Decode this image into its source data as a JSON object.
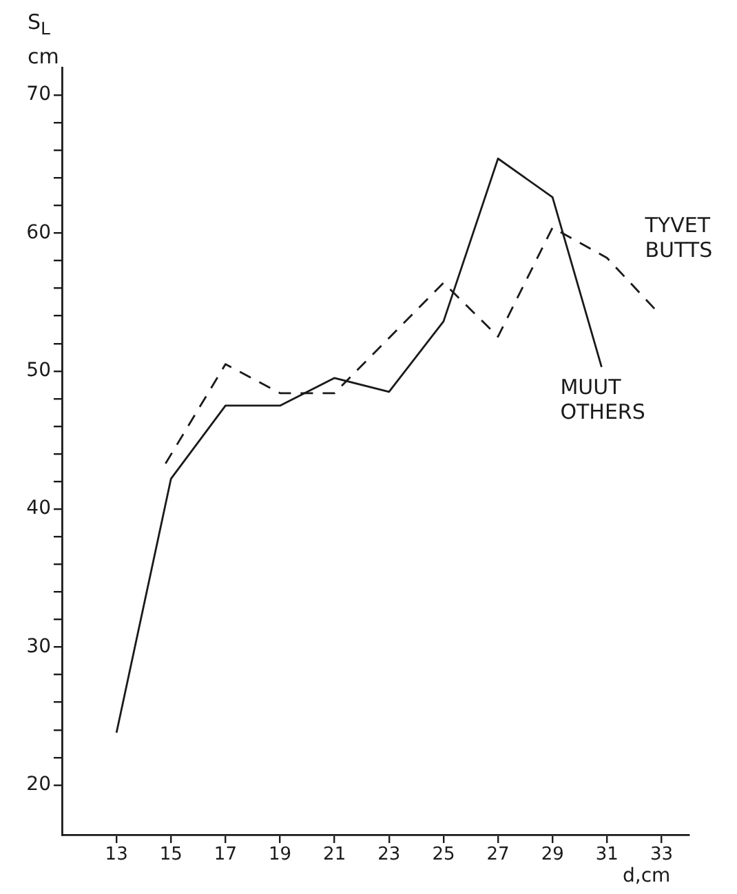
{
  "chart_data": {
    "type": "line",
    "xlabel": "d,cm",
    "ylabel": "S$_{L}$ cm",
    "xlim": [
      11,
      34
    ],
    "xticks": [
      13,
      15,
      17,
      19,
      21,
      23,
      25,
      27,
      29,
      31,
      33
    ],
    "ylim": [
      16.4,
      72
    ],
    "yticks": [
      20,
      {
        "value": 22,
        "label": null
      },
      {
        "value": 24,
        "label": null
      },
      {
        "value": 26,
        "label": null
      },
      {
        "value": 28,
        "label": null
      },
      30,
      {
        "value": 32,
        "label": null
      },
      {
        "value": 34,
        "label": null
      },
      {
        "value": 36,
        "label": null
      },
      {
        "value": 38,
        "label": null
      },
      40,
      {
        "value": 42,
        "label": null
      },
      {
        "value": 44,
        "label": null
      },
      {
        "value": 46,
        "label": null
      },
      {
        "value": 48,
        "label": null
      },
      50,
      {
        "value": 52,
        "label": null
      },
      {
        "value": 54,
        "label": null
      },
      {
        "value": 56,
        "label": null
      },
      {
        "value": 58,
        "label": null
      },
      60,
      {
        "value": 62,
        "label": null
      },
      {
        "value": 64,
        "label": null
      },
      {
        "value": 66,
        "label": null
      },
      {
        "value": 68,
        "label": null
      },
      70
    ],
    "grid": false,
    "legend": false,
    "marker": "none",
    "series": [
      {
        "name": "MUUT OTHERS",
        "color": "#1a1a1a",
        "line_style": "solid",
        "x": [
          13,
          15,
          17,
          19,
          21,
          23,
          25,
          27,
          29,
          30.8
        ],
        "values": [
          23.8,
          42.2,
          47.5,
          47.5,
          49.5,
          48.5,
          53.6,
          65.4,
          62.6,
          50.3
        ]
      },
      {
        "name": "TYVET BUTTS",
        "color": "#1a1a1a",
        "line_style": "dashed",
        "x": [
          14.8,
          17,
          19,
          21,
          23,
          25,
          27,
          29,
          31,
          32.8
        ],
        "values": [
          43.3,
          50.5,
          48.4,
          48.4,
          52.4,
          56.4,
          52.5,
          60.4,
          58.2,
          54.4
        ]
      }
    ]
  }
}
